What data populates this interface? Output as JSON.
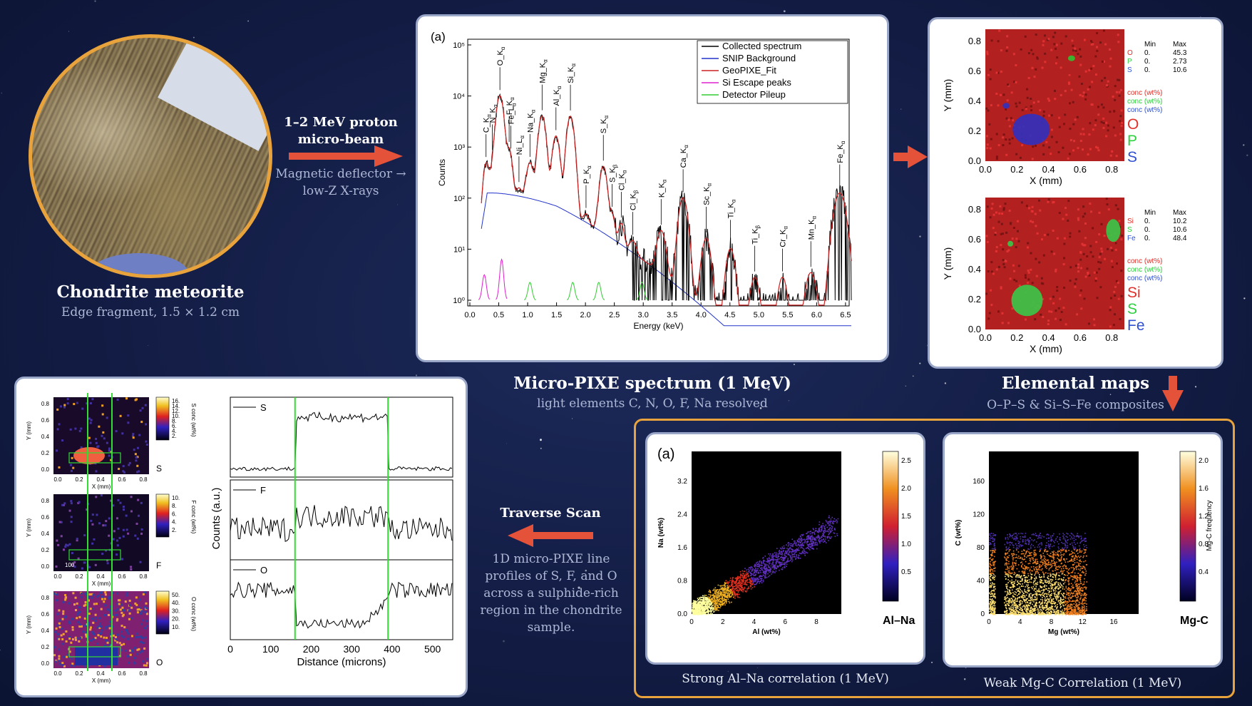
{
  "meteorite": {
    "title": "Chondrite meteorite",
    "subtitle": "Edge fragment, 1.5 × 1.2 cm"
  },
  "beam": {
    "label_line1": "1–2 MeV proton",
    "label_line2": "micro-beam",
    "sub_line1": "Magnetic deflector →",
    "sub_line2": "low-Z X-rays"
  },
  "spectrum": {
    "caption_title": "Micro-PIXE spectrum (1 MeV)",
    "caption_sub": "light elements C, N, O, F, Na resolved",
    "panel_label": "(a)",
    "legend": [
      "Collected spectrum",
      "SNIP Background",
      "GeoPIXE_Fit",
      "Si Escape peaks",
      "Detector Pileup"
    ],
    "xlabel": "Energy (keV)",
    "ylabel": "Counts",
    "xticks": [
      "0.0",
      "0.5",
      "1.0",
      "1.5",
      "2.0",
      "2.5",
      "3.0",
      "3.5",
      "4.0",
      "4.5",
      "5.0",
      "5.5",
      "6.0",
      "6.5"
    ],
    "yticks": [
      "10⁰",
      "10¹",
      "10²",
      "10³",
      "10⁴",
      "10⁵"
    ],
    "peak_labels": [
      {
        "text": "C_K",
        "sub": "α",
        "e": 0.28
      },
      {
        "text": "N_K",
        "sub": "α",
        "e": 0.39
      },
      {
        "text": "O_K",
        "sub": "α",
        "e": 0.52
      },
      {
        "text": "F_K",
        "sub": "α",
        "e": 0.68
      },
      {
        "text": "Fe_L",
        "sub": "α",
        "e": 0.71
      },
      {
        "text": "Ni_L",
        "sub": "α",
        "e": 0.85
      },
      {
        "text": "Na_K",
        "sub": "α",
        "e": 1.04
      },
      {
        "text": "Mg_K",
        "sub": "α",
        "e": 1.25
      },
      {
        "text": "Al_K",
        "sub": "α",
        "e": 1.49
      },
      {
        "text": "Si_K",
        "sub": "α",
        "e": 1.74
      },
      {
        "text": "P_K",
        "sub": "α",
        "e": 2.01
      },
      {
        "text": "S_K",
        "sub": "α",
        "e": 2.31
      },
      {
        "text": "S_K",
        "sub": "β",
        "e": 2.46
      },
      {
        "text": "Cl_K",
        "sub": "α",
        "e": 2.62
      },
      {
        "text": "Cl_K",
        "sub": "β",
        "e": 2.82
      },
      {
        "text": "K_K",
        "sub": "α",
        "e": 3.31
      },
      {
        "text": "Ca_K",
        "sub": "α",
        "e": 3.69
      },
      {
        "text": "Sc_K",
        "sub": "α",
        "e": 4.09
      },
      {
        "text": "Ti_K",
        "sub": "α",
        "e": 4.51
      },
      {
        "text": "Ti_K",
        "sub": "β",
        "e": 4.93
      },
      {
        "text": "Cr_K",
        "sub": "α",
        "e": 5.41
      },
      {
        "text": "Mn_K",
        "sub": "α",
        "e": 5.9
      },
      {
        "text": "Fe_K",
        "sub": "α",
        "e": 6.4
      }
    ]
  },
  "maps": {
    "caption_title": "Elemental maps",
    "caption_sub": "O–P–S & Si–S–Fe composites",
    "map1": {
      "legend_big": [
        "O",
        "P",
        "S"
      ],
      "conc": "conc (wt%)",
      "min_hdr": "Min",
      "max_hdr": "Max",
      "rows": [
        {
          "el": "O",
          "min": "0.",
          "max": "45.3",
          "color": "#e0302a"
        },
        {
          "el": "P",
          "min": "0.",
          "max": "2.73",
          "color": "#2fcf3f"
        },
        {
          "el": "S",
          "min": "0.",
          "max": "10.6",
          "color": "#3050d0"
        }
      ]
    },
    "map2": {
      "legend_big": [
        "Si",
        "S",
        "Fe"
      ],
      "conc": "conc (wt%)",
      "min_hdr": "Min",
      "max_hdr": "Max",
      "rows": [
        {
          "el": "Si",
          "min": "0.",
          "max": "10.2",
          "color": "#e0302a"
        },
        {
          "el": "S",
          "min": "0.",
          "max": "10.6",
          "color": "#2fcf3f"
        },
        {
          "el": "Fe",
          "min": "0.",
          "max": "48.4",
          "color": "#3050d0"
        }
      ]
    },
    "xlabel": "X (mm)",
    "ylabel": "Y (mm)",
    "ticks": [
      "0.0",
      "0.2",
      "0.4",
      "0.6",
      "0.8"
    ]
  },
  "traverse": {
    "label": "Traverse Scan",
    "desc": [
      "1D micro-PIXE line",
      "profiles of S, F, and O",
      "across a sulphide-rich",
      "region in the chondrite",
      "sample."
    ],
    "profiles": [
      "S",
      "F",
      "O"
    ],
    "xlabel": "Distance (microns)",
    "ylabel": "Counts (a.u.)",
    "xticks": [
      "0",
      "100",
      "200",
      "300",
      "400",
      "500"
    ],
    "maps": [
      {
        "el": "S",
        "cbar": "S conc (wt%)",
        "ticks": [
          "16.",
          "14.",
          "12.",
          "10.",
          "8.",
          "6.",
          "4.",
          "2."
        ]
      },
      {
        "el": "F",
        "cbar": "F conc (wt%)",
        "ticks": [
          "10.",
          "8.",
          "6.",
          "4.",
          "2."
        ]
      },
      {
        "el": "O",
        "cbar": "O conc (wt%)",
        "ticks": [
          "50.",
          "40.",
          "30.",
          "20.",
          "10."
        ]
      }
    ],
    "scale": "100"
  },
  "corr": {
    "left": {
      "caption": "Strong Al–Na correlation (1 MeV)",
      "panel_label": "(a)",
      "xlabel": "Al (wt%)",
      "ylabel": "Na (wt%)",
      "tag": "Al–Na",
      "xticks": [
        "0",
        "2",
        "4",
        "6",
        "8"
      ],
      "yticks": [
        "0.0",
        "0.8",
        "1.6",
        "2.4",
        "3.2"
      ],
      "cbar": [
        "2.5",
        "2.0",
        "1.5",
        "1.0",
        "0.5"
      ]
    },
    "right": {
      "caption": "Weak Mg-C Correlation (1 MeV)",
      "xlabel": "Mg (wt%)",
      "ylabel": "C (wt%)",
      "tag": "Mg-C",
      "xticks": [
        "0",
        "4",
        "8",
        "12",
        "16"
      ],
      "yticks": [
        "0",
        "40",
        "80",
        "120",
        "160"
      ],
      "cbar": [
        "2.0",
        "1.6",
        "1.2",
        "0.8",
        "0.4"
      ],
      "cbar_label": "Mg-C frequency"
    }
  },
  "colors": {
    "arrow": "#e4523a",
    "accent": "#e9a33c"
  }
}
